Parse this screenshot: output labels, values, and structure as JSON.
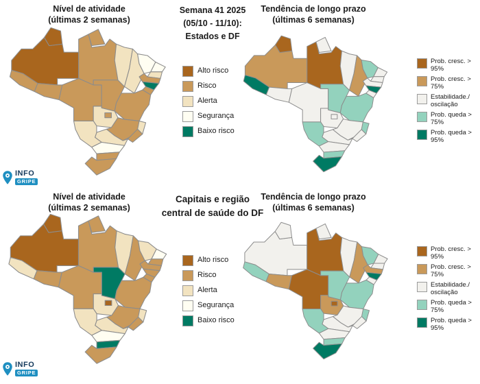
{
  "header": {
    "week_line1": "Semana 41 2025",
    "week_line2": "(05/10 - 11/10):",
    "week_line3": "Estados e DF",
    "capitals_line1": "Capitais e região",
    "capitals_line2": "central de saúde do DF"
  },
  "titles": {
    "activity_line1": "Nível de atividade",
    "activity_line2": "(últimas 2 semanas)",
    "trend_line1": "Tendência de longo prazo",
    "trend_line2": "(últimas 6 semanas)"
  },
  "logo": {
    "info": "INFO",
    "gripe": "GRIPE"
  },
  "legends": {
    "activity": [
      {
        "code": "alto",
        "label": "Alto risco",
        "color": "#a9661e"
      },
      {
        "code": "risco",
        "label": "Risco",
        "color": "#c9995a"
      },
      {
        "code": "alerta",
        "label": "Alerta",
        "color": "#f2e3c0"
      },
      {
        "code": "seg",
        "label": "Segurança",
        "color": "#fffef2"
      },
      {
        "code": "baixo",
        "label": "Baixo risco",
        "color": "#007a63"
      }
    ],
    "trend": [
      {
        "code": "c95",
        "label": "Prob. cresc. > 95%",
        "color": "#a9661e"
      },
      {
        "code": "c75",
        "label": "Prob. cresc. > 75%",
        "color": "#c9995a"
      },
      {
        "code": "est",
        "label": "Estabilidade./ oscilação",
        "color": "#f2f1ed"
      },
      {
        "code": "q75",
        "label": "Prob. queda > 75%",
        "color": "#93d2bd"
      },
      {
        "code": "q95",
        "label": "Prob. queda > 95%",
        "color": "#007a63"
      }
    ]
  },
  "chart_data": {
    "type": "choropleth",
    "region": "Brazil federative units (UF)",
    "maps": [
      {
        "id": "estados-atividade",
        "title": "Nível de atividade (últimas 2 semanas) — Estados e DF",
        "scale": "activity",
        "states": {
          "AC": "risco",
          "AM": "alto",
          "RR": "alto",
          "AP": "risco",
          "PA": "risco",
          "RO": "risco",
          "MT": "risco",
          "TO": "risco",
          "MA": "alerta",
          "PI": "alerta",
          "CE": "seg",
          "RN": "seg",
          "PB": "alerta",
          "PE": "risco",
          "AL": "baixo",
          "SE": "risco",
          "BA": "risco",
          "GO": "alerta",
          "DF": "risco",
          "MS": "alerta",
          "MG": "risco",
          "ES": "alerta",
          "RJ": "risco",
          "SP": "alerta",
          "PR": "seg",
          "SC": "risco",
          "RS": "risco"
        }
      },
      {
        "id": "estados-tendencia",
        "title": "Tendência de longo prazo (últimas 6 semanas) — Estados e DF",
        "scale": "trend",
        "states": {
          "AC": "q95",
          "AM": "c75",
          "RR": "c95",
          "AP": "est",
          "PA": "c95",
          "RO": "est",
          "MT": "est",
          "TO": "q75",
          "MA": "est",
          "PI": "c75",
          "CE": "q75",
          "RN": "est",
          "PB": "est",
          "PE": "est",
          "AL": "q95",
          "SE": "est",
          "BA": "q75",
          "GO": "est",
          "DF": "est",
          "MS": "q75",
          "MG": "est",
          "ES": "q75",
          "RJ": "est",
          "SP": "est",
          "PR": "est",
          "SC": "q75",
          "RS": "q95"
        }
      },
      {
        "id": "capitais-atividade",
        "title": "Nível de atividade (últimas 2 semanas) — Capitais e região central de saúde do DF",
        "scale": "activity",
        "states": {
          "AC": "alerta",
          "AM": "alto",
          "RR": "alto",
          "AP": "risco",
          "PA": "risco",
          "RO": "risco",
          "MT": "risco",
          "TO": "baixo",
          "MA": "alerta",
          "PI": "risco",
          "CE": "alerta",
          "RN": "seg",
          "PB": "risco",
          "PE": "risco",
          "AL": "risco",
          "SE": "risco",
          "BA": "risco",
          "GO": "alerta",
          "DF": "alto",
          "MS": "alerta",
          "MG": "risco",
          "ES": "alerta",
          "RJ": "risco",
          "SP": "alerta",
          "PR": "seg",
          "SC": "baixo",
          "RS": "risco"
        }
      },
      {
        "id": "capitais-tendencia",
        "title": "Tendência de longo prazo (últimas 6 semanas) — Capitais e região central de saúde do DF",
        "scale": "trend",
        "states": {
          "AC": "q75",
          "AM": "est",
          "RR": "est",
          "AP": "est",
          "PA": "c95",
          "RO": "c75",
          "MT": "c95",
          "TO": "q75",
          "MA": "est",
          "PI": "c75",
          "CE": "q75",
          "RN": "est",
          "PB": "est",
          "PE": "c75",
          "AL": "q95",
          "SE": "est",
          "BA": "q75",
          "GO": "c75",
          "DF": "c95",
          "MS": "q75",
          "MG": "est",
          "ES": "q75",
          "RJ": "est",
          "SP": "est",
          "PR": "est",
          "SC": "q75",
          "RS": "q95"
        }
      }
    ]
  }
}
